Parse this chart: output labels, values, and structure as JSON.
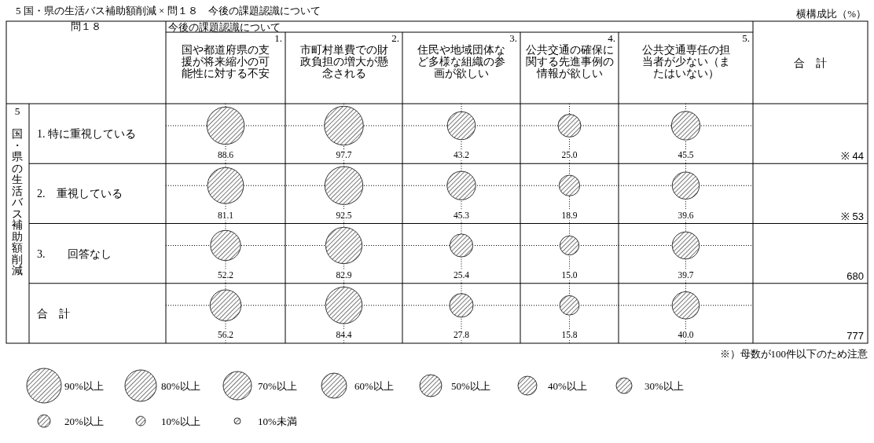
{
  "chart_data": {
    "type": "heatmap",
    "title": "5 国・県の生活バス補助額削減 × 問１８　今後の課題認識について",
    "xlabel": "今後の課題認識について",
    "ylabel": "5 国・県の生活バス補助額削減",
    "y2label": "合　計",
    "annotations": [
      "横構成比（%）",
      "問１８",
      "※）母数が100件以下のため注意",
      "90%以上",
      "80%以上",
      "70%以上",
      "60%以上",
      "50%以上",
      "40%以上",
      "30%以上",
      "20%以上",
      "10%以上",
      "10%未満"
    ],
    "categories": [
      "1. 国や都道府県の支援が将来縮小の可能性に対する不安",
      "2. 市町村単費での財政負担の増大が懸念される",
      "3. 住民や地域団体など多様な組織の参画が欲しい",
      "4. 公共交通の確保に関する先進事例の情報が欲しい",
      "5. 公共交通専任の担当者が少ない（またはいない）"
    ],
    "y_categories": [
      "1. 特に重視している",
      "2.　重視している",
      "3.　　回答なし",
      "合　計"
    ],
    "y2_categories": [
      "※ 44",
      "※ 53",
      "680",
      "777"
    ],
    "cells": [
      [
        88.6,
        97.7,
        43.2,
        25.0,
        45.5
      ],
      [
        81.1,
        92.5,
        45.3,
        18.9,
        39.6
      ],
      [
        52.2,
        82.9,
        25.4,
        15.0,
        39.7
      ],
      [
        56.2,
        84.4,
        27.8,
        15.8,
        40.0
      ]
    ],
    "cell_labels": [
      [
        "88.6",
        "97.7",
        "43.2",
        "25.0",
        "45.5"
      ],
      [
        "81.1",
        "92.5",
        "45.3",
        "18.9",
        "39.6"
      ],
      [
        "52.2",
        "82.9",
        "25.4",
        "15.0",
        "39.7"
      ],
      [
        "56.2",
        "84.4",
        "27.8",
        "15.8",
        "40.0"
      ]
    ],
    "grid": true
  }
}
